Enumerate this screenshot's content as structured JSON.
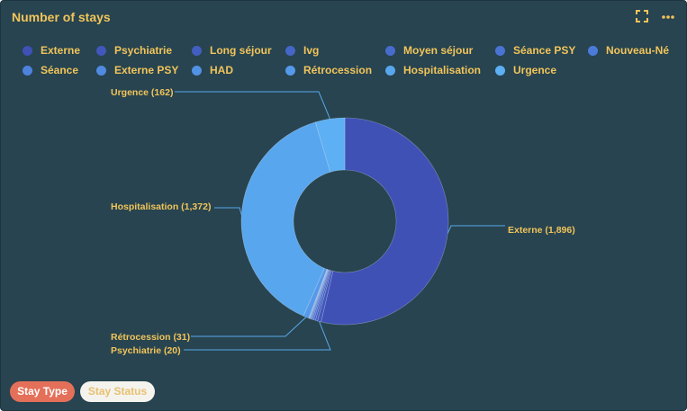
{
  "header": {
    "title": "Number of stays",
    "fullscreen_icon": "expand-icon",
    "menu_icon": "more-horizontal-icon"
  },
  "colors": {
    "background": "#274450",
    "accent_text": "#f2c45a",
    "active_pill": "#e4705a"
  },
  "legend": {
    "items": [
      {
        "label": "Externe",
        "color": "#3f51b5"
      },
      {
        "label": "Psychiatrie",
        "color": "#4157bb"
      },
      {
        "label": "Long séjour",
        "color": "#435ec1"
      },
      {
        "label": "Ivg",
        "color": "#4565c7"
      },
      {
        "label": "Moyen séjour",
        "color": "#476ccd"
      },
      {
        "label": "Séance PSY",
        "color": "#4974d3"
      },
      {
        "label": "Nouveau-Né",
        "color": "#4b7bd9"
      },
      {
        "label": "Séance",
        "color": "#4d83dd"
      },
      {
        "label": "Externe PSY",
        "color": "#508ae1"
      },
      {
        "label": "HAD",
        "color": "#5292e5"
      },
      {
        "label": "Rétrocession",
        "color": "#5599ea"
      },
      {
        "label": "Hospitalisation",
        "color": "#58a6ee"
      },
      {
        "label": "Urgence",
        "color": "#5cb0f3"
      }
    ]
  },
  "chart_data": {
    "type": "pie",
    "donut": true,
    "title": "Number of stays",
    "legend_position": "top",
    "slices": [
      {
        "label": "Externe",
        "value": 1896
      },
      {
        "label": "Psychiatrie",
        "value": 20
      },
      {
        "label": "Long séjour",
        "value": 12
      },
      {
        "label": "Ivg",
        "value": 10
      },
      {
        "label": "Moyen séjour",
        "value": 8
      },
      {
        "label": "Séance PSY",
        "value": 6
      },
      {
        "label": "Nouveau-Né",
        "value": 5
      },
      {
        "label": "Séance",
        "value": 4
      },
      {
        "label": "Externe PSY",
        "value": 3
      },
      {
        "label": "HAD",
        "value": 2
      },
      {
        "label": "Rétrocession",
        "value": 31
      },
      {
        "label": "Hospitalisation",
        "value": 1372
      },
      {
        "label": "Urgence",
        "value": 162
      }
    ],
    "data_labels": [
      {
        "label": "Externe",
        "text": "Externe (1,896)"
      },
      {
        "label": "Psychiatrie",
        "text": "Psychiatrie (20)"
      },
      {
        "label": "Rétrocession",
        "text": "Rétrocession (31)"
      },
      {
        "label": "Hospitalisation",
        "text": "Hospitalisation (1,372)"
      },
      {
        "label": "Urgence",
        "text": "Urgence (162)"
      }
    ]
  },
  "filters": {
    "tabs": [
      {
        "label": "Stay Type",
        "active": true
      },
      {
        "label": "Stay Status",
        "active": false
      }
    ]
  }
}
